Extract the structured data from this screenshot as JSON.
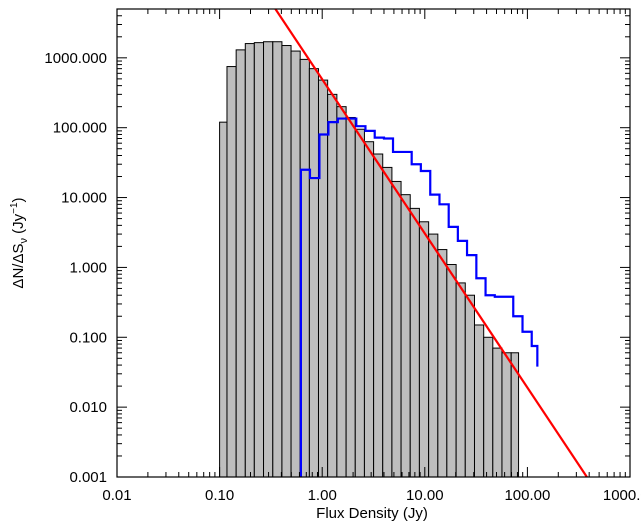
{
  "chart_data": {
    "type": "bar",
    "title": "",
    "xlabel": "Flux Density (Jy)",
    "ylabel_main": "ΔN/ΔS",
    "ylabel_sub": "ν",
    "ylabel_unit": " (Jy",
    "ylabel_exp": "−1",
    "ylabel_close": ")",
    "xscale": "log",
    "yscale": "log",
    "xlim": [
      0.01,
      1000
    ],
    "ylim": [
      0.001,
      5000
    ],
    "grid": false,
    "x_ticks": [
      {
        "value": 0.01,
        "label": "0.01"
      },
      {
        "value": 0.1,
        "label": "0.10"
      },
      {
        "value": 1,
        "label": "1.00"
      },
      {
        "value": 10,
        "label": "10.00"
      },
      {
        "value": 100,
        "label": "100.00"
      },
      {
        "value": 1000,
        "label": "1000.00"
      }
    ],
    "y_ticks": [
      {
        "value": 0.001,
        "label": "0.001"
      },
      {
        "value": 0.01,
        "label": "0.010"
      },
      {
        "value": 0.1,
        "label": "0.100"
      },
      {
        "value": 1,
        "label": "1.000"
      },
      {
        "value": 10,
        "label": "10.000"
      },
      {
        "value": 100,
        "label": "100.000"
      },
      {
        "value": 1000,
        "label": "1000.000"
      }
    ],
    "histogram": {
      "color": "#bebebe",
      "edge_color": "#000000",
      "bins": [
        {
          "x0": 0.1,
          "x1": 0.118,
          "y": 120
        },
        {
          "x0": 0.118,
          "x1": 0.145,
          "y": 750
        },
        {
          "x0": 0.145,
          "x1": 0.178,
          "y": 1300
        },
        {
          "x0": 0.178,
          "x1": 0.218,
          "y": 1600
        },
        {
          "x0": 0.218,
          "x1": 0.268,
          "y": 1650
        },
        {
          "x0": 0.268,
          "x1": 0.33,
          "y": 1700
        },
        {
          "x0": 0.33,
          "x1": 0.405,
          "y": 1700
        },
        {
          "x0": 0.405,
          "x1": 0.497,
          "y": 1500
        },
        {
          "x0": 0.497,
          "x1": 0.61,
          "y": 1250
        },
        {
          "x0": 0.61,
          "x1": 0.75,
          "y": 950
        },
        {
          "x0": 0.75,
          "x1": 0.92,
          "y": 700
        },
        {
          "x0": 0.92,
          "x1": 1.13,
          "y": 480
        },
        {
          "x0": 1.13,
          "x1": 1.39,
          "y": 300
        },
        {
          "x0": 1.39,
          "x1": 1.71,
          "y": 200
        },
        {
          "x0": 1.71,
          "x1": 2.1,
          "y": 140
        },
        {
          "x0": 2.1,
          "x1": 2.58,
          "y": 95
        },
        {
          "x0": 2.58,
          "x1": 3.17,
          "y": 63
        },
        {
          "x0": 3.17,
          "x1": 3.89,
          "y": 42
        },
        {
          "x0": 3.89,
          "x1": 4.78,
          "y": 27
        },
        {
          "x0": 4.78,
          "x1": 5.87,
          "y": 17
        },
        {
          "x0": 5.87,
          "x1": 7.21,
          "y": 11
        },
        {
          "x0": 7.21,
          "x1": 8.86,
          "y": 7
        },
        {
          "x0": 8.86,
          "x1": 10.9,
          "y": 4.5
        },
        {
          "x0": 10.9,
          "x1": 13.4,
          "y": 3
        },
        {
          "x0": 13.4,
          "x1": 16.4,
          "y": 1.8
        },
        {
          "x0": 16.4,
          "x1": 20.2,
          "y": 1.1
        },
        {
          "x0": 20.2,
          "x1": 24.8,
          "y": 0.6
        },
        {
          "x0": 24.8,
          "x1": 30.5,
          "y": 0.4
        },
        {
          "x0": 30.5,
          "x1": 37.5,
          "y": 0.15
        },
        {
          "x0": 37.5,
          "x1": 46.0,
          "y": 0.1
        },
        {
          "x0": 46.0,
          "x1": 56.5,
          "y": 0.07
        },
        {
          "x0": 56.5,
          "x1": 69.5,
          "y": 0.06
        },
        {
          "x0": 69.5,
          "x1": 82.0,
          "y": 0.06
        }
      ]
    },
    "step_series": {
      "color": "#0000ff",
      "edges": [
        0.62,
        0.76,
        0.94,
        1.15,
        1.42,
        1.75,
        2.15,
        2.64,
        3.25,
        4.0,
        4.9,
        6.05,
        7.45,
        9.15,
        11.3,
        13.9,
        17.1,
        21.0,
        25.8,
        31.8,
        39.1,
        48.1,
        59.2,
        72.8,
        89.6,
        110.2,
        125.0
      ],
      "values": [
        25,
        19,
        80,
        120,
        135,
        135,
        105,
        90,
        72,
        70,
        45,
        45,
        30,
        24,
        11,
        8,
        3.8,
        2.4,
        1.5,
        0.7,
        0.4,
        0.38,
        0.38,
        0.2,
        0.12,
        0.075,
        0.038
      ]
    },
    "fit_line": {
      "color": "#ff0000",
      "points": [
        {
          "x": 0.35,
          "y": 5000
        },
        {
          "x": 380,
          "y": 0.001
        }
      ]
    }
  }
}
